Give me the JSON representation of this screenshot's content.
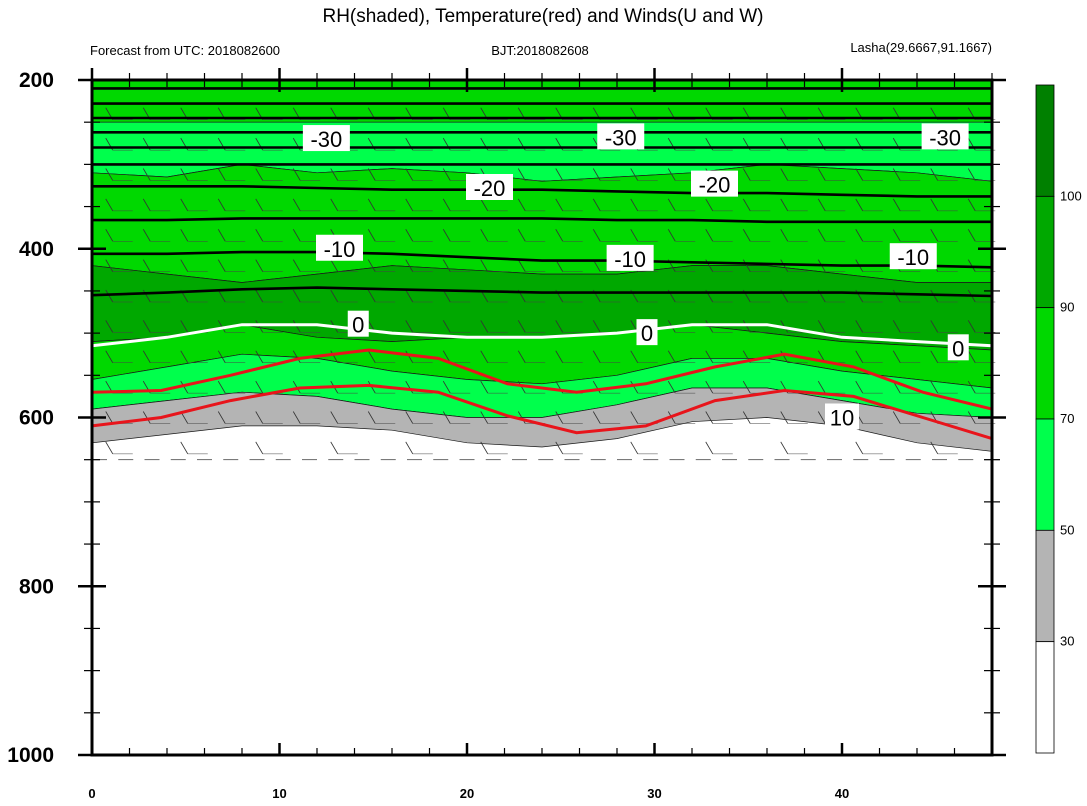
{
  "header": {
    "title": "RH(shaded), Temperature(red) and Winds(U and W)",
    "left": "Forecast from UTC: 2018082600",
    "center": "BJT:2018082608",
    "right": "Lasha(29.6667,91.1667)"
  },
  "chart_data": {
    "type": "contour",
    "title": "RH(shaded), Temperature(red) and Winds(U and W)",
    "x": {
      "ticks": [
        "0",
        "10",
        "20",
        "30",
        "40"
      ],
      "range": [
        0,
        48
      ]
    },
    "y": {
      "ticks": [
        "200",
        "400",
        "600",
        "800",
        "1000"
      ],
      "range": [
        200,
        1000
      ],
      "reversed": true
    },
    "colorbar": {
      "labels": [
        "30",
        "50",
        "70",
        "90",
        "100"
      ],
      "colors": [
        "#ffffff",
        "#b4b4b4",
        "#00ff4c",
        "#00d800",
        "#00a800",
        "#008000"
      ]
    },
    "rh_bands": [
      {
        "color": "#00d800",
        "top": [
          200,
          200,
          200,
          200,
          200,
          200,
          200,
          200,
          200,
          200,
          200,
          200,
          200
        ],
        "bottom": [
          250,
          250,
          250,
          250,
          250,
          250,
          250,
          250,
          250,
          250,
          250,
          250,
          250
        ]
      },
      {
        "color": "#00ff4c",
        "top": [
          250,
          250,
          250,
          250,
          250,
          250,
          250,
          250,
          250,
          250,
          250,
          250,
          250
        ],
        "bottom": [
          310,
          315,
          300,
          310,
          305,
          310,
          320,
          315,
          310,
          300,
          305,
          310,
          320
        ]
      },
      {
        "color": "#00d800",
        "top": [
          310,
          315,
          300,
          310,
          305,
          310,
          320,
          315,
          310,
          300,
          305,
          310,
          320
        ],
        "bottom": [
          420,
          430,
          440,
          430,
          420,
          425,
          430,
          430,
          420,
          420,
          430,
          440,
          440
        ]
      },
      {
        "color": "#00a800",
        "top": [
          420,
          430,
          440,
          430,
          420,
          425,
          430,
          430,
          420,
          420,
          430,
          440,
          440
        ],
        "bottom": [
          510,
          505,
          490,
          505,
          510,
          505,
          505,
          500,
          490,
          500,
          510,
          515,
          520
        ]
      },
      {
        "color": "#00d800",
        "top": [
          510,
          505,
          490,
          505,
          510,
          505,
          505,
          500,
          490,
          500,
          510,
          515,
          520
        ],
        "bottom": [
          555,
          540,
          525,
          530,
          545,
          555,
          560,
          550,
          530,
          530,
          545,
          555,
          565
        ]
      },
      {
        "color": "#00ff4c",
        "top": [
          555,
          540,
          525,
          530,
          545,
          555,
          560,
          550,
          530,
          530,
          545,
          555,
          565
        ],
        "bottom": [
          590,
          580,
          570,
          575,
          590,
          600,
          600,
          585,
          565,
          565,
          580,
          595,
          600
        ]
      },
      {
        "color": "#b4b4b4",
        "top": [
          590,
          580,
          570,
          575,
          590,
          600,
          600,
          585,
          565,
          565,
          580,
          595,
          600
        ],
        "bottom": [
          630,
          620,
          610,
          610,
          615,
          630,
          635,
          625,
          605,
          600,
          610,
          630,
          640
        ]
      }
    ],
    "black_isotherms": [
      {
        "y": [
          210,
          210,
          210,
          210,
          210,
          210,
          210,
          210,
          210,
          210,
          210,
          210,
          210
        ]
      },
      {
        "y": [
          228,
          228,
          228,
          228,
          228,
          228,
          228,
          228,
          228,
          228,
          228,
          228,
          228
        ]
      },
      {
        "y": [
          245,
          245,
          245,
          245,
          245,
          245,
          245,
          245,
          245,
          245,
          245,
          245,
          245
        ]
      },
      {
        "y": [
          262,
          262,
          262,
          262,
          262,
          262,
          262,
          262,
          262,
          262,
          262,
          262,
          262
        ]
      },
      {
        "y": [
          280,
          280,
          280,
          280,
          280,
          280,
          280,
          280,
          280,
          280,
          280,
          280,
          280
        ]
      },
      {
        "y": [
          300,
          300,
          300,
          300,
          300,
          300,
          300,
          300,
          300,
          300,
          300,
          300,
          300
        ]
      },
      {
        "y": [
          326,
          326,
          326,
          328,
          330,
          330,
          330,
          332,
          334,
          334,
          336,
          338,
          338
        ]
      },
      {
        "y": [
          366,
          366,
          364,
          364,
          364,
          364,
          364,
          366,
          366,
          368,
          368,
          368,
          368
        ]
      },
      {
        "y": [
          406,
          406,
          404,
          404,
          406,
          410,
          414,
          414,
          416,
          418,
          420,
          420,
          422
        ]
      },
      {
        "y": [
          455,
          452,
          448,
          446,
          448,
          450,
          452,
          452,
          452,
          452,
          452,
          454,
          456
        ]
      }
    ],
    "white_isotherm": {
      "y": [
        515,
        505,
        490,
        490,
        500,
        505,
        505,
        500,
        490,
        490,
        505,
        510,
        515
      ]
    },
    "red_isotherms": [
      {
        "y": [
          570,
          568,
          550,
          530,
          520,
          530,
          560,
          570,
          560,
          540,
          525,
          540,
          570,
          590
        ]
      },
      {
        "y": [
          610,
          600,
          580,
          565,
          562,
          570,
          598,
          618,
          610,
          580,
          568,
          575,
          600,
          625
        ]
      }
    ],
    "contour_labels": [
      {
        "text": "-30",
        "x": 12.5,
        "y": 270
      },
      {
        "text": "-30",
        "x": 28.2,
        "y": 268
      },
      {
        "text": "-30",
        "x": 45.5,
        "y": 268
      },
      {
        "text": "-20",
        "x": 21.2,
        "y": 328
      },
      {
        "text": "-20",
        "x": 33.2,
        "y": 324
      },
      {
        "text": "-10",
        "x": 13.2,
        "y": 400
      },
      {
        "text": "-10",
        "x": 28.7,
        "y": 412
      },
      {
        "text": "-10",
        "x": 43.8,
        "y": 410
      },
      {
        "text": "0",
        "x": 14.2,
        "y": 490
      },
      {
        "text": "0",
        "x": 29.6,
        "y": 500
      },
      {
        "text": "0",
        "x": 46.2,
        "y": 518
      },
      {
        "text": "10",
        "x": 40.0,
        "y": 600
      }
    ]
  }
}
